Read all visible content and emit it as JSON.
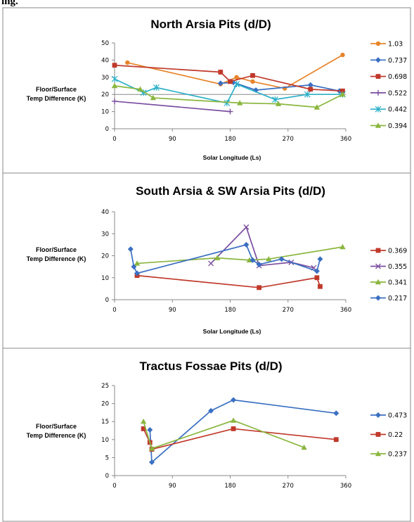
{
  "page_heading": "ing.",
  "chart_data": [
    {
      "type": "line",
      "title": "North Arsia Pits (d/D)",
      "ylabel": [
        "Floor/Surface",
        "Temp Difference (K)"
      ],
      "xlabel": "Solar Longitude (Ls)",
      "xlim": [
        0,
        360
      ],
      "ylim": [
        0,
        50
      ],
      "xticks": [
        0,
        90,
        180,
        270,
        360
      ],
      "yticks": [
        0,
        10,
        20,
        30,
        40,
        50
      ],
      "grid": "major horizontal at 20",
      "legend_position": "right",
      "series": [
        {
          "name": "1.03",
          "color": "#e8842a",
          "marker": "circle",
          "x": [
            20,
            165,
            190,
            215,
            265,
            355
          ],
          "y": [
            38.5,
            26,
            30,
            27.5,
            23.5,
            43
          ]
        },
        {
          "name": "0.737",
          "color": "#3a6fc2",
          "marker": "diamond",
          "x": [
            165,
            185,
            220,
            305,
            350
          ],
          "y": [
            26.5,
            27,
            22.5,
            25.5,
            22
          ]
        },
        {
          "name": "0.698",
          "color": "#c0392b",
          "marker": "square",
          "x": [
            0,
            165,
            180,
            215,
            305,
            355
          ],
          "y": [
            37,
            33,
            27.5,
            31,
            23,
            22
          ]
        },
        {
          "name": "0.522",
          "color": "#7b4fa0",
          "marker": "plus",
          "x": [
            0,
            180
          ],
          "y": [
            16,
            10
          ]
        },
        {
          "name": "0.442",
          "color": "#2ab0c8",
          "marker": "star",
          "x": [
            0,
            45,
            65,
            175,
            190,
            250,
            300,
            355
          ],
          "y": [
            29,
            21,
            24,
            15,
            26,
            17,
            20,
            20
          ]
        },
        {
          "name": "0.394",
          "color": "#8ab63e",
          "marker": "triangle",
          "x": [
            0,
            40,
            60,
            195,
            255,
            315,
            355
          ],
          "y": [
            25,
            23,
            18,
            15,
            14.5,
            12.5,
            20
          ]
        }
      ]
    },
    {
      "type": "line",
      "title": "South Arsia & SW Arsia Pits (d/D)",
      "ylabel": [
        "Floor/Surface",
        "Temp Difference (K)"
      ],
      "xlabel": "Solar Longitude (Ls)",
      "xlim": [
        0,
        360
      ],
      "ylim": [
        0,
        40
      ],
      "xticks": [
        0,
        90,
        180,
        270,
        360
      ],
      "yticks": [
        0,
        10,
        20,
        30,
        40
      ],
      "grid": "none",
      "legend_position": "right",
      "series": [
        {
          "name": "0.369",
          "color": "#c0392b",
          "marker": "square",
          "x": [
            35,
            225,
            315,
            320
          ],
          "y": [
            11,
            5.5,
            10,
            6
          ]
        },
        {
          "name": "0.355",
          "color": "#7b4fa0",
          "marker": "x",
          "x": [
            150,
            205,
            225,
            275,
            310
          ],
          "y": [
            16.5,
            33,
            15.5,
            17,
            14.5
          ]
        },
        {
          "name": "0.341",
          "color": "#8ab63e",
          "marker": "triangle",
          "x": [
            35,
            160,
            210,
            240,
            355
          ],
          "y": [
            16.5,
            19,
            18,
            18.5,
            24
          ]
        },
        {
          "name": "0.217",
          "color": "#3a6fc2",
          "marker": "diamond",
          "x": [
            25,
            30,
            35,
            205,
            215,
            225,
            260,
            315,
            320
          ],
          "y": [
            23,
            15,
            12,
            25,
            18,
            16,
            18.5,
            13,
            18.5
          ]
        }
      ]
    },
    {
      "type": "line",
      "title": "Tractus Fossae Pits (d/D)",
      "ylabel": [
        "Floor/Surface",
        "Temp Difference (K)"
      ],
      "xlabel": "",
      "xlim": [
        0,
        360
      ],
      "ylim": [
        0,
        25
      ],
      "xticks": [
        0,
        90,
        180,
        270,
        360
      ],
      "yticks": [
        0,
        5,
        10,
        15,
        20,
        25
      ],
      "grid": "none",
      "legend_position": "right",
      "series": [
        {
          "name": "0.473",
          "color": "#3a6fc2",
          "marker": "diamond",
          "x": [
            55,
            58,
            150,
            185,
            345
          ],
          "y": [
            12.7,
            3.7,
            18,
            21,
            17.3
          ]
        },
        {
          "name": "0.22",
          "color": "#c0392b",
          "marker": "square",
          "x": [
            45,
            55,
            58,
            185,
            345
          ],
          "y": [
            13,
            9.2,
            7.3,
            13,
            10
          ]
        },
        {
          "name": "0.237",
          "color": "#8ab63e",
          "marker": "triangle",
          "x": [
            45,
            58,
            185,
            295
          ],
          "y": [
            15,
            7.5,
            15.3,
            7.8
          ]
        }
      ]
    }
  ]
}
